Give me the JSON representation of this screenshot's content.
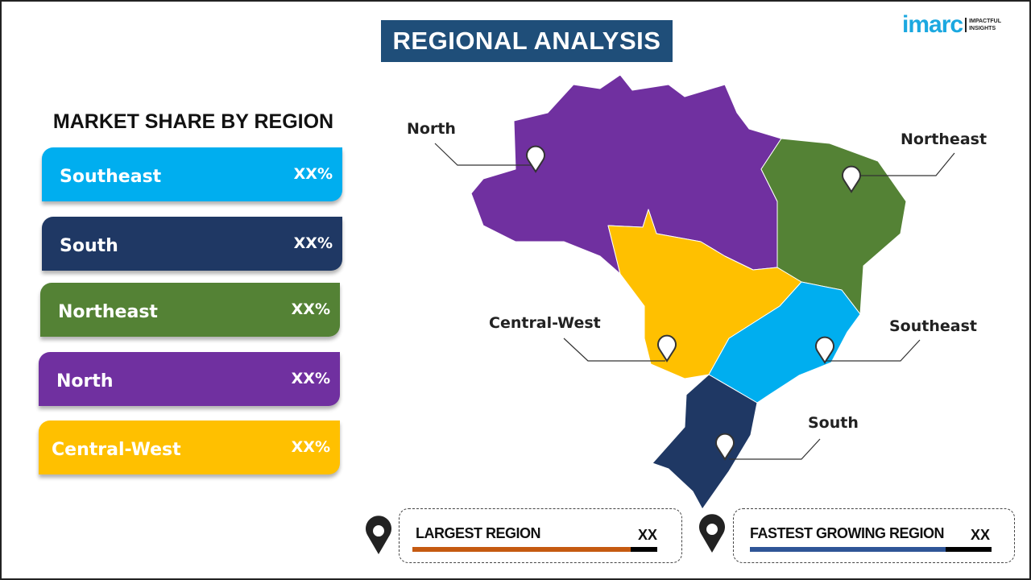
{
  "title": "REGIONAL ANALYSIS",
  "logo": {
    "word": "imarc",
    "tagline": "IMPACTFUL INSIGHTS"
  },
  "market_share": {
    "heading": "MARKET SHARE BY REGION",
    "items": [
      {
        "name": "Southeast",
        "value": "XX%",
        "color": "#00AEEF"
      },
      {
        "name": "South",
        "value": "XX%",
        "color": "#1F3864"
      },
      {
        "name": "Northeast",
        "value": "XX%",
        "color": "#548235"
      },
      {
        "name": "North",
        "value": "XX%",
        "color": "#7030A0"
      },
      {
        "name": "Central-West",
        "value": "XX%",
        "color": "#FFC000"
      }
    ]
  },
  "map": {
    "labels": {
      "north": "North",
      "northeast": "Northeast",
      "central_west": "Central-West",
      "southeast": "Southeast",
      "south": "South"
    }
  },
  "summary": {
    "largest": {
      "label": "LARGEST REGION",
      "value": "XX",
      "color": "#C55A11"
    },
    "fastest": {
      "label": "FASTEST GROWING REGION",
      "value": "XX",
      "color": "#2F5597"
    }
  }
}
